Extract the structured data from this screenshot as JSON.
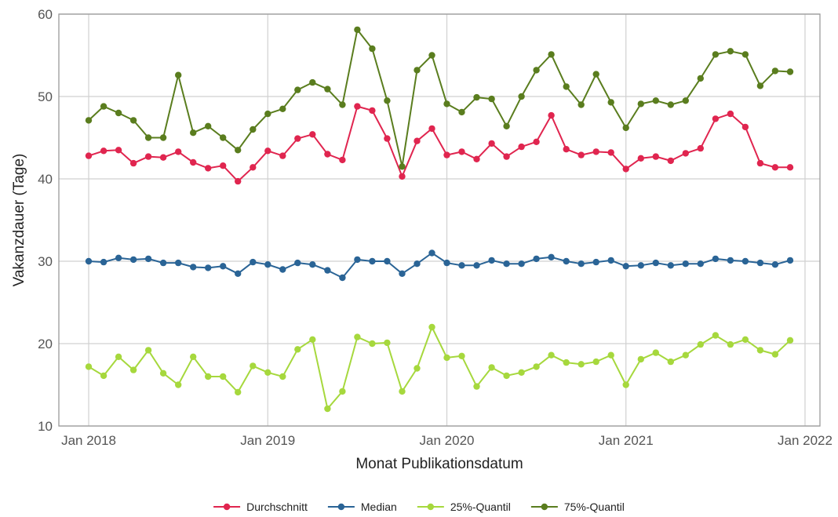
{
  "chart_data": {
    "type": "line",
    "xlabel": "Monat Publikationsdatum",
    "ylabel": "Vakanzdauer (Tage)",
    "x_ticks": [
      "Jan 2018",
      "Jan 2019",
      "Jan 2020",
      "Jan 2021",
      "Jan 2022"
    ],
    "y_ticks": [
      10,
      20,
      30,
      40,
      50,
      60
    ],
    "ylim": [
      10,
      60
    ],
    "xlim": [
      "2017-11",
      "2022-02"
    ],
    "grid": true,
    "legend_position": "bottom",
    "x": [
      "2018-01",
      "2018-02",
      "2018-03",
      "2018-04",
      "2018-05",
      "2018-06",
      "2018-07",
      "2018-08",
      "2018-09",
      "2018-10",
      "2018-11",
      "2018-12",
      "2019-01",
      "2019-02",
      "2019-03",
      "2019-04",
      "2019-05",
      "2019-06",
      "2019-07",
      "2019-08",
      "2019-09",
      "2019-10",
      "2019-11",
      "2019-12",
      "2020-01",
      "2020-02",
      "2020-03",
      "2020-04",
      "2020-05",
      "2020-06",
      "2020-07",
      "2020-08",
      "2020-09",
      "2020-10",
      "2020-11",
      "2020-12",
      "2021-01",
      "2021-02",
      "2021-03",
      "2021-04",
      "2021-05",
      "2021-06",
      "2021-07",
      "2021-08",
      "2021-09",
      "2021-10",
      "2021-11",
      "2021-12"
    ],
    "series": [
      {
        "name": "Durchschnitt",
        "color": "#e0254f",
        "values": [
          42.8,
          43.4,
          43.5,
          41.9,
          42.7,
          42.6,
          43.3,
          42.0,
          41.3,
          41.6,
          39.7,
          41.4,
          43.4,
          42.8,
          44.9,
          45.4,
          43.0,
          42.3,
          48.8,
          48.3,
          44.9,
          40.3,
          44.6,
          46.1,
          42.9,
          43.3,
          42.4,
          44.3,
          42.7,
          43.9,
          44.5,
          47.7,
          43.6,
          42.9,
          43.3,
          43.2,
          41.2,
          42.5,
          42.7,
          42.2,
          43.1,
          43.7,
          47.3,
          47.9,
          46.3,
          41.9,
          41.4,
          41.4
        ]
      },
      {
        "name": "Median",
        "color": "#2a6496",
        "values": [
          30.0,
          29.9,
          30.4,
          30.2,
          30.3,
          29.8,
          29.8,
          29.3,
          29.2,
          29.4,
          28.5,
          29.9,
          29.6,
          29.0,
          29.8,
          29.6,
          28.9,
          28.0,
          30.2,
          30.0,
          30.0,
          28.5,
          29.7,
          31.0,
          29.8,
          29.5,
          29.5,
          30.1,
          29.7,
          29.7,
          30.3,
          30.5,
          30.0,
          29.7,
          29.9,
          30.1,
          29.4,
          29.5,
          29.8,
          29.5,
          29.7,
          29.7,
          30.3,
          30.1,
          30.0,
          29.8,
          29.6,
          30.1
        ]
      },
      {
        "name": "25%-Quantil",
        "color": "#a6d83d",
        "values": [
          17.2,
          16.1,
          18.4,
          16.8,
          19.2,
          16.4,
          15.0,
          18.4,
          16.0,
          16.0,
          14.1,
          17.3,
          16.5,
          16.0,
          19.3,
          20.5,
          12.1,
          14.2,
          20.8,
          20.0,
          20.1,
          14.2,
          17.0,
          22.0,
          18.3,
          18.5,
          14.8,
          17.1,
          16.1,
          16.5,
          17.2,
          18.6,
          17.7,
          17.5,
          17.8,
          18.6,
          15.0,
          18.1,
          18.9,
          17.8,
          18.6,
          19.9,
          21.0,
          19.9,
          20.5,
          19.2,
          18.7,
          20.4
        ]
      },
      {
        "name": "75%-Quantil",
        "color": "#5a7d1e",
        "values": [
          47.1,
          48.8,
          48.0,
          47.1,
          45.0,
          45.0,
          52.6,
          45.6,
          46.4,
          45.0,
          43.5,
          46.0,
          47.9,
          48.5,
          50.8,
          51.7,
          50.9,
          49.0,
          58.1,
          55.8,
          49.5,
          41.5,
          53.2,
          55.0,
          49.1,
          48.1,
          49.9,
          49.7,
          46.4,
          50.0,
          53.2,
          55.1,
          51.2,
          49.0,
          52.7,
          49.3,
          46.2,
          49.1,
          49.5,
          49.0,
          49.5,
          52.2,
          55.1,
          55.5,
          55.1,
          51.3,
          53.1,
          53.0
        ]
      }
    ]
  }
}
